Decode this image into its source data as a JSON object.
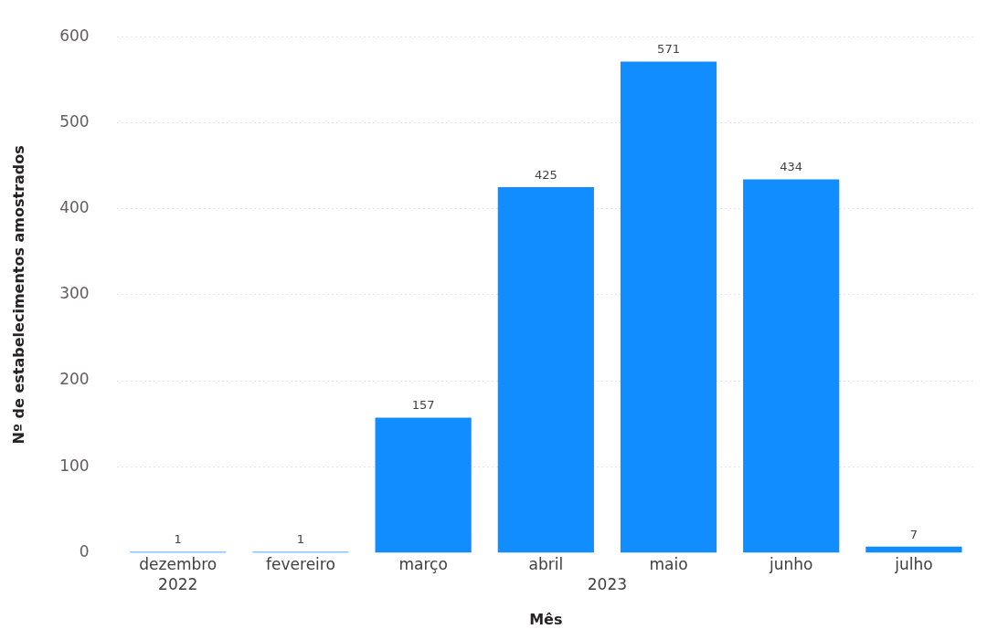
{
  "chart_data": {
    "type": "bar",
    "xlabel": "Mês",
    "ylabel": "Nº de estabelecimentos amostrados",
    "categories": [
      "dezembro",
      "fevereiro",
      "março",
      "abril",
      "maio",
      "junho",
      "julho"
    ],
    "values": [
      1,
      1,
      157,
      425,
      571,
      434,
      7
    ],
    "color": "#118dff",
    "ylim": [
      0,
      600
    ],
    "yticks": [
      0,
      100,
      200,
      300,
      400,
      500,
      600
    ],
    "grid": "y",
    "data_labels": true,
    "legend": false,
    "annotations": [
      "2022",
      "2023"
    ]
  }
}
